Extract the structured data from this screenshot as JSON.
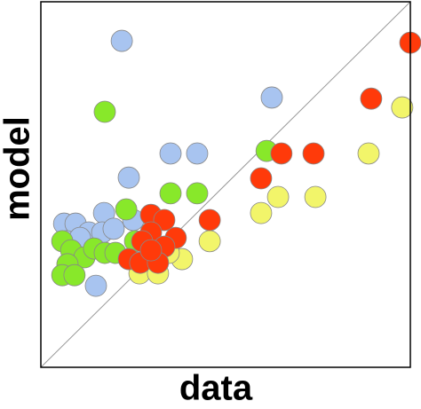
{
  "chart_data": {
    "type": "scatter",
    "x_label": "data",
    "y_label": "model",
    "xlim": [
      0,
      100
    ],
    "ylim": [
      0,
      100
    ],
    "series": [
      {
        "color": "#a8c4f0",
        "x": [
          21.9,
          62.5,
          35.1,
          42.3,
          23.8,
          17.1,
          6.3,
          9.4,
          13.0,
          16.6,
          19.7,
          25.0,
          14.9,
          7.0,
          10.6
        ],
        "values": [
          89.3,
          73.8,
          58.5,
          58.5,
          51.9,
          42.2,
          39.3,
          39.3,
          36.9,
          36.9,
          37.9,
          40.3,
          22.3,
          34.5,
          35.4
        ]
      },
      {
        "color": "#88e82a",
        "x": [
          17.3,
          61.1,
          35.1,
          42.3,
          23.1,
          5.8,
          8.2,
          11.8,
          7.2,
          5.8,
          9.1,
          14.4,
          17.3,
          20.2,
          25.5
        ],
        "values": [
          69.9,
          59.2,
          47.6,
          47.6,
          43.2,
          34.5,
          32.0,
          30.1,
          28.2,
          25.2,
          25.2,
          32.5,
          31.3,
          31.3,
          34.5
        ]
      },
      {
        "color": "#f2f56a",
        "x": [
          97.8,
          88.7,
          64.2,
          74.3,
          59.6,
          45.7,
          38.2,
          34.6,
          26.7,
          31.7
        ],
        "values": [
          71.1,
          58.5,
          46.6,
          46.6,
          42.2,
          34.5,
          29.6,
          31.3,
          25.7,
          25.7
        ]
      },
      {
        "color": "#ff3a0a",
        "x": [
          100.0,
          89.4,
          65.1,
          73.8,
          59.6,
          45.7,
          29.8,
          33.4,
          36.5,
          29.8,
          27.4,
          33.4,
          23.8,
          26.9,
          31.7,
          29.8
        ],
        "values": [
          88.8,
          73.5,
          58.5,
          58.5,
          51.7,
          40.3,
          41.7,
          40.3,
          35.4,
          36.9,
          34.5,
          33.0,
          29.6,
          28.6,
          28.6,
          32.0
        ]
      }
    ]
  }
}
